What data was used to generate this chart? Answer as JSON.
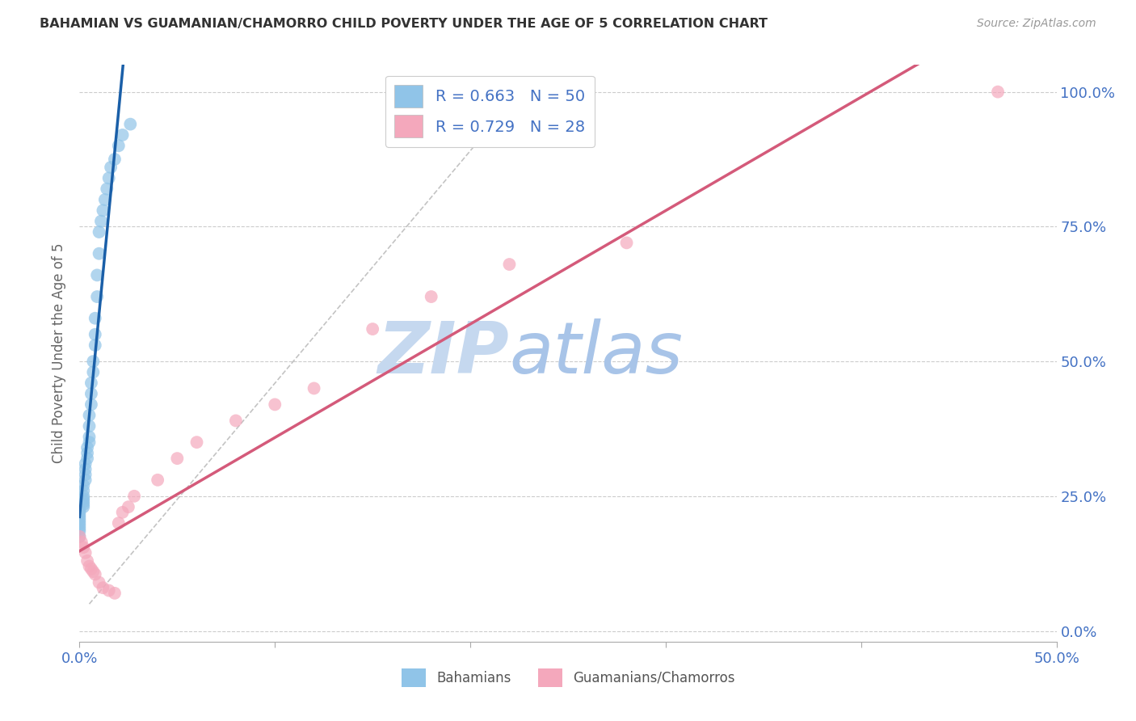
{
  "title": "BAHAMIAN VS GUAMANIAN/CHAMORRO CHILD POVERTY UNDER THE AGE OF 5 CORRELATION CHART",
  "source": "Source: ZipAtlas.com",
  "ylabel_label": "Child Poverty Under the Age of 5",
  "legend_bottom": [
    "Bahamians",
    "Guamanians/Chamorros"
  ],
  "bahamian_R": 0.663,
  "bahamian_N": 50,
  "guamanian_R": 0.729,
  "guamanian_N": 28,
  "blue_color": "#90c4e8",
  "pink_color": "#f4a8bc",
  "blue_line_color": "#1a5fa8",
  "pink_line_color": "#d45a7a",
  "axis_label_color": "#4472c4",
  "watermark_color": "#dce8f8",
  "background_color": "#ffffff",
  "bahamian_x": [
    0.0,
    0.0,
    0.0,
    0.0,
    0.0,
    0.0,
    0.0,
    0.0,
    0.0,
    0.0,
    0.002,
    0.002,
    0.002,
    0.002,
    0.002,
    0.002,
    0.002,
    0.003,
    0.003,
    0.003,
    0.003,
    0.004,
    0.004,
    0.004,
    0.005,
    0.005,
    0.005,
    0.005,
    0.006,
    0.006,
    0.006,
    0.007,
    0.007,
    0.008,
    0.008,
    0.008,
    0.009,
    0.009,
    0.01,
    0.01,
    0.011,
    0.012,
    0.013,
    0.014,
    0.015,
    0.016,
    0.018,
    0.02,
    0.022,
    0.026
  ],
  "bahamian_y": [
    0.175,
    0.185,
    0.19,
    0.195,
    0.2,
    0.205,
    0.21,
    0.215,
    0.22,
    0.225,
    0.23,
    0.235,
    0.24,
    0.245,
    0.25,
    0.26,
    0.27,
    0.28,
    0.29,
    0.3,
    0.31,
    0.32,
    0.33,
    0.34,
    0.35,
    0.36,
    0.38,
    0.4,
    0.42,
    0.44,
    0.46,
    0.48,
    0.5,
    0.53,
    0.55,
    0.58,
    0.62,
    0.66,
    0.7,
    0.74,
    0.76,
    0.78,
    0.8,
    0.82,
    0.84,
    0.86,
    0.875,
    0.9,
    0.92,
    0.94
  ],
  "guamanian_x": [
    0.0,
    0.001,
    0.002,
    0.003,
    0.004,
    0.005,
    0.006,
    0.007,
    0.008,
    0.01,
    0.012,
    0.015,
    0.018,
    0.02,
    0.022,
    0.025,
    0.028,
    0.04,
    0.05,
    0.06,
    0.08,
    0.1,
    0.12,
    0.15,
    0.18,
    0.22,
    0.28,
    0.47
  ],
  "guamanian_y": [
    0.175,
    0.165,
    0.155,
    0.145,
    0.13,
    0.12,
    0.115,
    0.11,
    0.105,
    0.09,
    0.08,
    0.075,
    0.07,
    0.2,
    0.22,
    0.23,
    0.25,
    0.28,
    0.32,
    0.35,
    0.39,
    0.42,
    0.45,
    0.56,
    0.62,
    0.68,
    0.72,
    1.0
  ],
  "x_min": 0.0,
  "x_max": 0.5,
  "y_min": -0.02,
  "y_max": 1.05,
  "x_ticks": [
    0.0,
    0.5
  ],
  "x_tick_labels": [
    "0.0%",
    "50.0%"
  ],
  "y_ticks": [
    0.0,
    0.25,
    0.5,
    0.75,
    1.0
  ],
  "y_tick_labels": [
    "0.0%",
    "25.0%",
    "50.0%",
    "75.0%",
    "100.0%"
  ]
}
